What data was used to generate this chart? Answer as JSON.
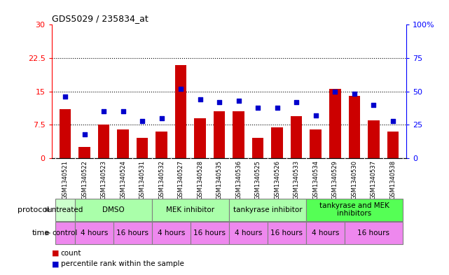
{
  "title": "GDS5029 / 235834_at",
  "samples": [
    "GSM1340521",
    "GSM1340522",
    "GSM1340523",
    "GSM1340524",
    "GSM1340531",
    "GSM1340532",
    "GSM1340527",
    "GSM1340528",
    "GSM1340535",
    "GSM1340536",
    "GSM1340525",
    "GSM1340526",
    "GSM1340533",
    "GSM1340534",
    "GSM1340529",
    "GSM1340530",
    "GSM1340537",
    "GSM1340538"
  ],
  "bar_values": [
    11.0,
    2.5,
    7.5,
    6.5,
    4.5,
    6.0,
    21.0,
    9.0,
    10.5,
    10.5,
    4.5,
    7.0,
    9.5,
    6.5,
    15.5,
    14.0,
    8.5,
    6.0
  ],
  "dot_values": [
    46,
    18,
    35,
    35,
    28,
    30,
    52,
    44,
    42,
    43,
    38,
    38,
    42,
    32,
    50,
    48,
    40,
    28
  ],
  "bar_color": "#CC0000",
  "dot_color": "#0000CC",
  "ylim_left": [
    0,
    30
  ],
  "ylim_right": [
    0,
    100
  ],
  "yticks_left": [
    0,
    7.5,
    15,
    22.5,
    30
  ],
  "ytick_labels_left": [
    "0",
    "7.5",
    "15",
    "22.5",
    "30"
  ],
  "yticks_right": [
    0,
    25,
    50,
    75,
    100
  ],
  "ytick_labels_right": [
    "0",
    "25",
    "50",
    "75",
    "100%"
  ],
  "hlines": [
    7.5,
    15.0,
    22.5
  ],
  "proto_groups": [
    {
      "label": "untreated",
      "start": 0,
      "end": 1,
      "color": "#ccffcc"
    },
    {
      "label": "DMSO",
      "start": 1,
      "end": 5,
      "color": "#aaffaa"
    },
    {
      "label": "MEK inhibitor",
      "start": 5,
      "end": 9,
      "color": "#aaffaa"
    },
    {
      "label": "tankyrase inhibitor",
      "start": 9,
      "end": 13,
      "color": "#aaffaa"
    },
    {
      "label": "tankyrase and MEK\ninhibitors",
      "start": 13,
      "end": 18,
      "color": "#55ff55"
    }
  ],
  "time_groups": [
    {
      "label": "control",
      "start": 0,
      "end": 1,
      "color": "#ee88ee"
    },
    {
      "label": "4 hours",
      "start": 1,
      "end": 3,
      "color": "#ee88ee"
    },
    {
      "label": "16 hours",
      "start": 3,
      "end": 5,
      "color": "#ee88ee"
    },
    {
      "label": "4 hours",
      "start": 5,
      "end": 7,
      "color": "#ee88ee"
    },
    {
      "label": "16 hours",
      "start": 7,
      "end": 9,
      "color": "#ee88ee"
    },
    {
      "label": "4 hours",
      "start": 9,
      "end": 11,
      "color": "#ee88ee"
    },
    {
      "label": "16 hours",
      "start": 11,
      "end": 13,
      "color": "#ee88ee"
    },
    {
      "label": "4 hours",
      "start": 13,
      "end": 15,
      "color": "#ee88ee"
    },
    {
      "label": "16 hours",
      "start": 15,
      "end": 18,
      "color": "#ee88ee"
    }
  ],
  "xtick_bg_color": "#d8d8d8",
  "legend_count_label": "count",
  "legend_pct_label": "percentile rank within the sample"
}
